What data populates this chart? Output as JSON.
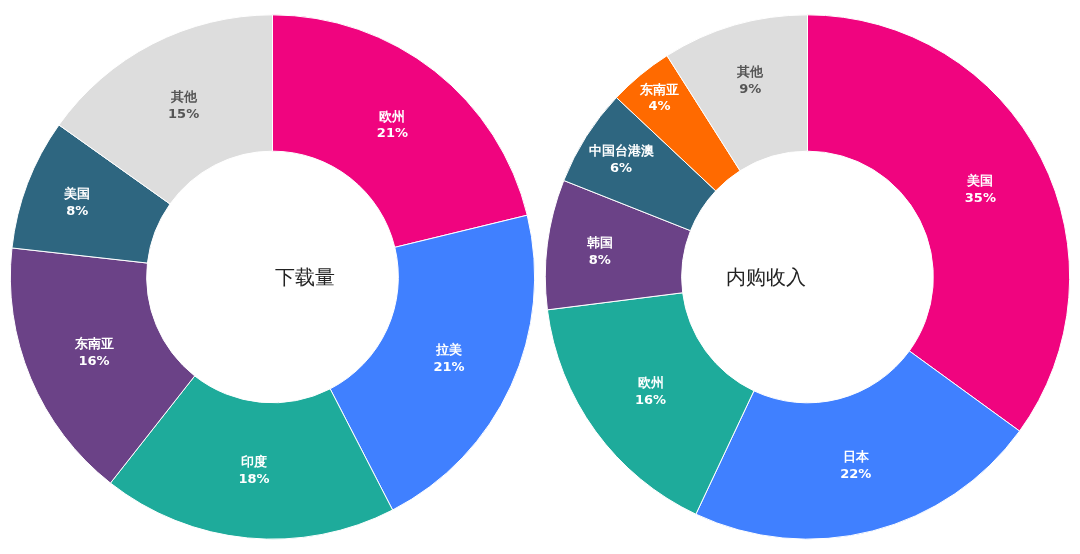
{
  "chart_data": [
    {
      "type": "donut",
      "title": "下载量",
      "categories": [
        "欧州",
        "拉美",
        "印度",
        "东南亚",
        "美国",
        "其他"
      ],
      "values": [
        21,
        21,
        18,
        16,
        8,
        15
      ],
      "value_labels": [
        "21%",
        "21%",
        "18%",
        "16%",
        "8%",
        "15%"
      ],
      "colors": [
        "#f0047f",
        "#4080ff",
        "#1eab9b",
        "#6b4287",
        "#2e6680",
        "#dddddd"
      ],
      "legend": false
    },
    {
      "type": "donut",
      "title": "内购收入",
      "categories": [
        "美国",
        "日本",
        "欧州",
        "韩国",
        "中国台港澳",
        "东南亚",
        "其他"
      ],
      "values": [
        35,
        22,
        16,
        8,
        6,
        4,
        9
      ],
      "value_labels": [
        "35%",
        "22%",
        "16%",
        "8%",
        "6%",
        "4%",
        "9%"
      ],
      "colors": [
        "#f0047f",
        "#4080ff",
        "#1eab9b",
        "#6b4287",
        "#2e6680",
        "#ff6a00",
        "#dddddd"
      ],
      "legend": false
    }
  ]
}
